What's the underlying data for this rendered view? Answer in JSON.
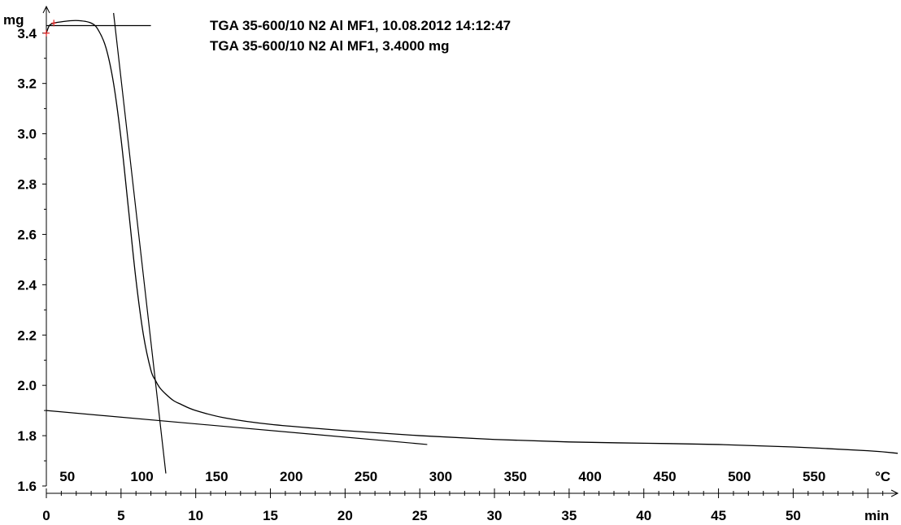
{
  "chart_data": {
    "type": "line",
    "title_lines": [
      "TGA 35-600/10 N2 Al MF1, 10.08.2012 14:12:47",
      "TGA 35-600/10 N2 Al MF1, 3.4000 mg"
    ],
    "ylabel": "mg",
    "xlabel": "min",
    "temp_label": "°C",
    "ylim": [
      1.6,
      3.5
    ],
    "xlim": [
      0,
      57
    ],
    "y_ticks": [
      "1.6",
      "1.8",
      "2.0",
      "2.2",
      "2.4",
      "2.6",
      "2.8",
      "3.0",
      "3.2",
      "3.4"
    ],
    "x_ticks": [
      "0",
      "5",
      "10",
      "15",
      "20",
      "25",
      "30",
      "35",
      "40",
      "45",
      "50"
    ],
    "temp_ticks": [
      "50",
      "100",
      "150",
      "200",
      "250",
      "300",
      "350",
      "400",
      "450",
      "500",
      "550"
    ],
    "temp_tick_min": [
      1.4,
      6.4,
      11.4,
      16.4,
      21.4,
      26.4,
      31.4,
      36.4,
      41.4,
      46.4,
      51.4
    ],
    "grid": false,
    "series": [
      {
        "x": [
          0,
          0.2,
          0.5,
          1,
          2,
          3,
          3.5,
          4,
          4.5,
          5,
          5.5,
          6,
          6.5,
          7,
          7.3,
          7.6,
          8,
          8.5,
          9,
          10,
          12,
          15,
          20,
          25,
          30,
          35,
          40,
          45,
          50,
          55,
          57
        ],
        "y": [
          3.4,
          3.43,
          3.44,
          3.445,
          3.45,
          3.44,
          3.41,
          3.34,
          3.2,
          2.98,
          2.7,
          2.42,
          2.2,
          2.06,
          2.02,
          1.99,
          1.965,
          1.94,
          1.925,
          1.9,
          1.87,
          1.845,
          1.82,
          1.8,
          1.785,
          1.775,
          1.77,
          1.765,
          1.755,
          1.74,
          1.73
        ]
      }
    ],
    "reference_lines": [
      {
        "x": [
          0,
          7
        ],
        "y": [
          3.43,
          3.43
        ]
      },
      {
        "x": [
          0,
          25.5
        ],
        "y": [
          1.9,
          1.765
        ]
      },
      {
        "x": [
          4.5,
          8
        ],
        "y": [
          3.48,
          1.65
        ]
      }
    ]
  }
}
